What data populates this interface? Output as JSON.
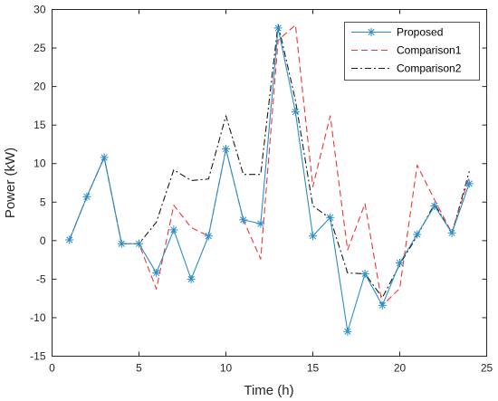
{
  "chart_data": {
    "type": "line",
    "title": "",
    "xlabel": "Time (h)",
    "ylabel": "Power (kW)",
    "xlim": [
      0,
      25
    ],
    "ylim": [
      -15,
      30
    ],
    "xticks": [
      0,
      5,
      10,
      15,
      20,
      25
    ],
    "yticks": [
      -15,
      -10,
      -5,
      0,
      5,
      10,
      15,
      20,
      25,
      30
    ],
    "grid": false,
    "legend_position": "top-right",
    "x": [
      1,
      2,
      3,
      4,
      5,
      6,
      7,
      8,
      9,
      10,
      11,
      12,
      13,
      14,
      15,
      16,
      17,
      18,
      19,
      20,
      21,
      22,
      23,
      24
    ],
    "series": [
      {
        "name": "Proposed",
        "color": "#2a8fc9",
        "dash": "solid",
        "marker": "asterisk",
        "values": [
          0.1,
          5.7,
          10.8,
          -0.4,
          -0.4,
          -4.2,
          1.4,
          -5.0,
          0.6,
          11.9,
          2.7,
          2.2,
          27.6,
          16.7,
          0.6,
          3.0,
          -11.8,
          -4.3,
          -8.4,
          -2.9,
          0.8,
          4.5,
          1.0,
          7.4
        ]
      },
      {
        "name": "Comparison1",
        "color": "#e8393a",
        "dash": "dashed",
        "marker": "none",
        "values": [
          0.1,
          5.7,
          10.8,
          -0.4,
          -0.4,
          -6.3,
          4.6,
          1.7,
          0.6,
          11.9,
          2.7,
          -2.4,
          26.0,
          28.0,
          7.0,
          16.2,
          -1.2,
          4.8,
          -8.4,
          -6.2,
          9.8,
          5.3,
          1.0,
          8.3
        ]
      },
      {
        "name": "Comparison2",
        "color": "#1a1a1a",
        "dash": "dashdot",
        "marker": "none",
        "values": [
          0.1,
          5.7,
          10.8,
          -0.4,
          -0.4,
          2.4,
          9.2,
          7.8,
          8.0,
          16.2,
          8.6,
          8.6,
          28.1,
          18.2,
          4.5,
          2.9,
          -4.2,
          -4.3,
          -7.4,
          -3.1,
          0.6,
          4.8,
          0.9,
          9.0
        ]
      }
    ]
  }
}
